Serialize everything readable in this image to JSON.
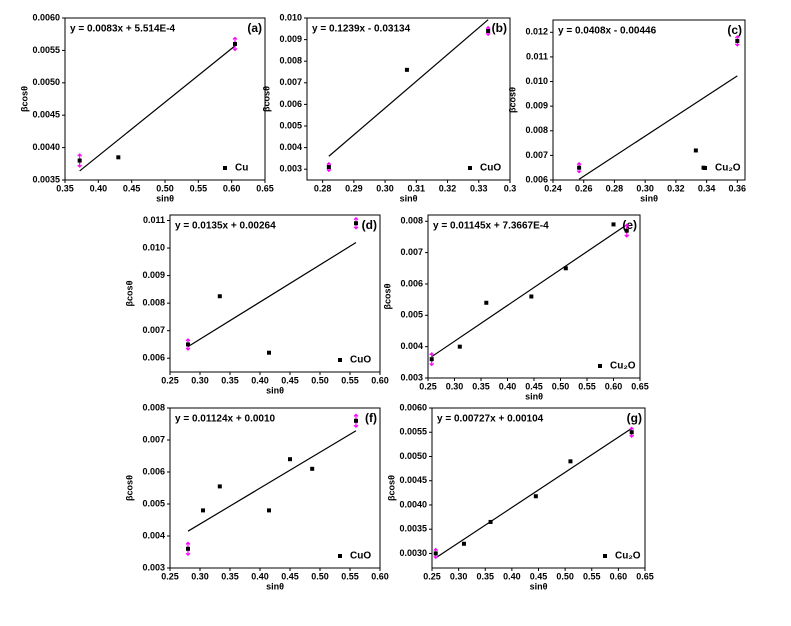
{
  "chart_data": [
    {
      "type": "scatter",
      "panel_label": "(a)",
      "equation": "y =  0.0083x + 5.514E-4",
      "xlabel": "sinθ",
      "ylabel": "βcosθ",
      "x": [
        0.372,
        0.43,
        0.605
      ],
      "series": [
        {
          "name": "Cu",
          "color": "#000000",
          "values": [
            0.0038,
            0.00385,
            0.0056
          ],
          "errors": [
            0.0001,
            null,
            0.0001
          ],
          "error_color": "#ff00ff"
        }
      ],
      "fit": {
        "x": [
          0.372,
          0.605
        ],
        "values": [
          0.00364,
          0.00557
        ]
      },
      "xlim": [
        0.35,
        0.65
      ],
      "xticks": [
        0.35,
        {
          "value": 0.4,
          "label": "0.40"
        },
        0.45,
        {
          "value": 0.5,
          "label": "0.50"
        },
        0.55,
        {
          "value": 0.6,
          "label": "0.60"
        },
        0.65
      ],
      "ylim": [
        0.0035,
        0.006
      ],
      "yticks": [
        0.0035,
        {
          "value": 0.004,
          "label": "0.0040"
        },
        0.0045,
        {
          "value": 0.005,
          "label": "0.0050"
        },
        0.0055,
        {
          "value": 0.006,
          "label": "0.0060"
        }
      ]
    },
    {
      "type": "scatter",
      "panel_label": "(b)",
      "equation": "y =  0.1239x  - 0.03134",
      "xlabel": "sinθ",
      "ylabel": "βcosθ",
      "x": [
        0.282,
        0.307,
        0.333
      ],
      "series": [
        {
          "name": "CuO",
          "color": "#000000",
          "values": [
            0.0031,
            0.0076,
            0.0094
          ],
          "errors": [
            0.0002,
            null,
            0.0002
          ],
          "error_color": "#ff00ff"
        }
      ],
      "fit": {
        "x": [
          0.282,
          0.333
        ],
        "values": [
          0.0036,
          0.00992
        ]
      },
      "xlim": [
        0.275,
        0.34
      ],
      "xticks": [
        0.28,
        0.29,
        {
          "value": 0.3,
          "label": "0.30"
        },
        0.31,
        0.32,
        0.33,
        {
          "value": 0.34,
          "label": "0.3"
        }
      ],
      "ylim": [
        0.0025,
        0.01
      ],
      "yticks": [
        0.003,
        0.004,
        0.005,
        0.006,
        0.007,
        0.008,
        0.009,
        {
          "value": 0.01,
          "label": "0.010"
        }
      ]
    },
    {
      "type": "scatter",
      "panel_label": "(c)",
      "equation": "y = 0.0408x  - 0.00446",
      "xlabel": "sinθ",
      "ylabel": "βcosθ",
      "x": [
        0.257,
        0.333,
        0.338,
        0.36
      ],
      "series": [
        {
          "name": "Cu₂O",
          "color": "#000000",
          "values": [
            0.0065,
            0.0072,
            0.0065,
            0.01165
          ],
          "errors": [
            0.0002,
            null,
            null,
            0.0002
          ],
          "error_color": "#ff00ff"
        }
      ],
      "fit": {
        "x": [
          0.257,
          0.36
        ],
        "values": [
          0.00603,
          0.01023
        ]
      },
      "xlim": [
        0.24,
        0.365
      ],
      "xticks": [
        0.24,
        0.26,
        0.28,
        {
          "value": 0.3,
          "label": "0.30"
        },
        0.32,
        0.34,
        0.36
      ],
      "ylim": [
        0.006,
        0.0125
      ],
      "yticks": [
        0.006,
        0.007,
        0.008,
        0.009,
        {
          "value": 0.01,
          "label": "0.010"
        },
        0.011,
        0.012
      ]
    },
    {
      "type": "scatter",
      "panel_label": "(d)",
      "equation": "y = 0.0135x + 0.00264",
      "xlabel": "sinθ",
      "ylabel": "βcosθ",
      "x": [
        0.28,
        0.333,
        0.415,
        0.56
      ],
      "series": [
        {
          "name": "CuO",
          "color": "#000000",
          "values": [
            0.0065,
            0.00825,
            0.0062,
            0.0109
          ],
          "errors": [
            0.0002,
            null,
            null,
            0.0002
          ],
          "error_color": "#ff00ff"
        }
      ],
      "fit": {
        "x": [
          0.28,
          0.56
        ],
        "values": [
          0.00642,
          0.0102
        ]
      },
      "xlim": [
        0.25,
        0.6
      ],
      "xticks": [
        0.25,
        {
          "value": 0.3,
          "label": "0.30"
        },
        0.35,
        {
          "value": 0.4,
          "label": "0.40"
        },
        0.45,
        {
          "value": 0.5,
          "label": "0.50"
        },
        0.55,
        {
          "value": 0.6,
          "label": "0.60"
        }
      ],
      "ylim": [
        0.0055,
        0.0112
      ],
      "yticks": [
        0.006,
        0.007,
        0.008,
        0.009,
        {
          "value": 0.01,
          "label": "0.010"
        },
        0.011
      ]
    },
    {
      "type": "scatter",
      "panel_label": "(e)",
      "equation": "y = 0.01145x + 7.3667E-4",
      "xlabel": "sinθ",
      "ylabel": "βcosθ",
      "x": [
        0.257,
        0.31,
        0.36,
        0.445,
        0.51,
        0.6,
        0.625
      ],
      "series": [
        {
          "name": "Cu₂O",
          "color": "#000000",
          "values": [
            0.0036,
            0.004,
            0.0054,
            0.0056,
            0.0065,
            0.0079,
            0.0077
          ],
          "errors": [
            0.0002,
            null,
            null,
            null,
            null,
            null,
            0.0002
          ],
          "error_color": "#ff00ff"
        }
      ],
      "fit": {
        "x": [
          0.257,
          0.625
        ],
        "values": [
          0.00368,
          0.00789
        ]
      },
      "xlim": [
        0.25,
        0.65
      ],
      "xticks": [
        0.25,
        {
          "value": 0.3,
          "label": "0.30"
        },
        0.35,
        {
          "value": 0.4,
          "label": "0.40"
        },
        0.45,
        {
          "value": 0.5,
          "label": "0.50"
        },
        0.55,
        {
          "value": 0.6,
          "label": "0.60"
        },
        0.65
      ],
      "ylim": [
        0.003,
        0.0082
      ],
      "yticks": [
        0.003,
        0.004,
        0.005,
        0.006,
        0.007,
        0.008
      ]
    },
    {
      "type": "scatter",
      "panel_label": "(f)",
      "equation": "y = 0.01124x + 0.0010",
      "xlabel": "sinθ",
      "ylabel": "βcosθ",
      "x": [
        0.28,
        0.305,
        0.333,
        0.415,
        0.45,
        0.487,
        0.56
      ],
      "series": [
        {
          "name": "CuO",
          "color": "#000000",
          "values": [
            0.0036,
            0.0048,
            0.00555,
            0.0048,
            0.0064,
            0.0061,
            0.0076
          ],
          "errors": [
            0.0002,
            null,
            null,
            null,
            null,
            null,
            0.0002
          ],
          "error_color": "#ff00ff"
        }
      ],
      "fit": {
        "x": [
          0.28,
          0.56
        ],
        "values": [
          0.00415,
          0.00729
        ]
      },
      "xlim": [
        0.25,
        0.6
      ],
      "xticks": [
        0.25,
        {
          "value": 0.3,
          "label": "0.30"
        },
        0.35,
        {
          "value": 0.4,
          "label": "0.40"
        },
        0.45,
        {
          "value": 0.5,
          "label": "0.50"
        },
        0.55,
        {
          "value": 0.6,
          "label": "0.60"
        }
      ],
      "ylim": [
        0.003,
        0.008
      ],
      "yticks": [
        0.003,
        0.004,
        0.005,
        0.006,
        0.007,
        0.008
      ]
    },
    {
      "type": "scatter",
      "panel_label": "(g)",
      "equation": "y = 0.00727x + 0.00104",
      "xlabel": "sinθ",
      "ylabel": "βcosθ",
      "x": [
        0.257,
        0.31,
        0.36,
        0.445,
        0.51,
        0.625
      ],
      "series": [
        {
          "name": "Cu₂O",
          "color": "#000000",
          "values": [
            0.003,
            0.0032,
            0.00365,
            0.00418,
            0.0049,
            0.0055
          ],
          "errors": [
            0.0001,
            null,
            null,
            null,
            null,
            0.0001
          ],
          "error_color": "#ff00ff"
        }
      ],
      "fit": {
        "x": [
          0.257,
          0.625
        ],
        "values": [
          0.00291,
          0.00558
        ]
      },
      "xlim": [
        0.25,
        0.65
      ],
      "xticks": [
        0.25,
        {
          "value": 0.3,
          "label": "0.30"
        },
        0.35,
        {
          "value": 0.4,
          "label": "0.40"
        },
        0.45,
        {
          "value": 0.5,
          "label": "0.50"
        },
        0.55,
        {
          "value": 0.6,
          "label": "0.60"
        },
        0.65
      ],
      "ylim": [
        0.0027,
        0.006
      ],
      "yticks": [
        {
          "value": 0.003,
          "label": "0.0030"
        },
        0.0035,
        {
          "value": 0.004,
          "label": "0.0040"
        },
        0.0045,
        {
          "value": 0.005,
          "label": "0.0050"
        },
        0.0055,
        {
          "value": 0.006,
          "label": "0.0060"
        }
      ]
    }
  ]
}
